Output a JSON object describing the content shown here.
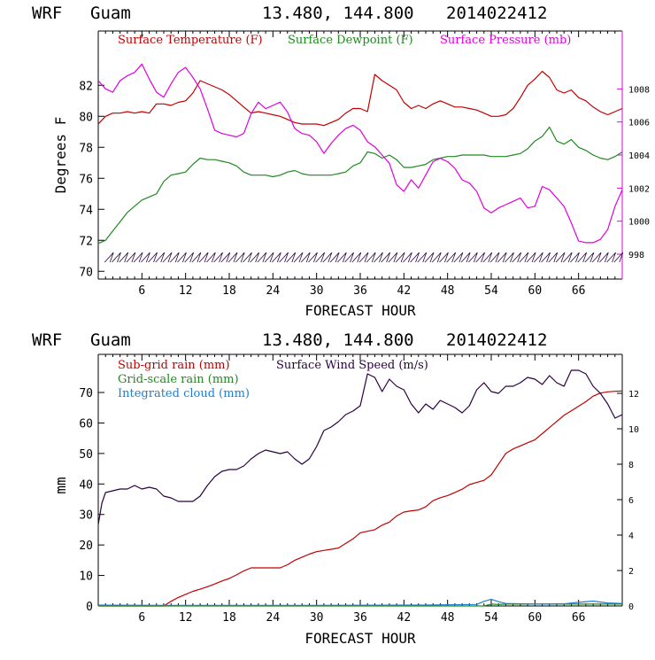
{
  "header": {
    "model": "WRF",
    "location": "Guam",
    "coords": "13.480, 144.800",
    "init_time": "2014022412"
  },
  "colors": {
    "temperature": "#c00000",
    "dewpoint": "#1e8a1e",
    "pressure": "#e000e0",
    "subgrid": "#c00000",
    "gridscale": "#1e8a1e",
    "cloud": "#1e7fd0",
    "wind": "#2a0040",
    "wind_barbs": "#2a0040"
  },
  "chart_data": [
    {
      "type": "line",
      "xlabel": "FORECAST HOUR",
      "ylabel": "Degrees F",
      "xlim": [
        0,
        72
      ],
      "ylim": [
        69.5,
        85.5
      ],
      "y2lim": [
        996.5,
        1011.5
      ],
      "xticks": [
        6,
        12,
        18,
        24,
        30,
        36,
        42,
        48,
        54,
        60,
        66
      ],
      "yticks": [
        70,
        72,
        74,
        76,
        78,
        80,
        82
      ],
      "y2ticks": [
        998,
        1000,
        1002,
        1004,
        1006,
        1008
      ],
      "legend_position": "top",
      "grid": false,
      "wind_barbs_row": "bottom",
      "series": [
        {
          "name": "Surface Temperature (F)",
          "axis": "left",
          "x": [
            0,
            1,
            2,
            3,
            4,
            5,
            6,
            7,
            8,
            9,
            10,
            11,
            12,
            13,
            14,
            15,
            16,
            17,
            18,
            19,
            20,
            21,
            22,
            23,
            24,
            25,
            26,
            27,
            28,
            29,
            30,
            31,
            32,
            33,
            34,
            35,
            36,
            37,
            38,
            39,
            40,
            41,
            42,
            43,
            44,
            45,
            46,
            47,
            48,
            49,
            50,
            51,
            52,
            53,
            54,
            55,
            56,
            57,
            58,
            59,
            60,
            61,
            62,
            63,
            64,
            65,
            66,
            67,
            68,
            69,
            70,
            71,
            72
          ],
          "values": [
            79.5,
            80.0,
            80.2,
            80.2,
            80.3,
            80.2,
            80.3,
            80.2,
            80.8,
            80.8,
            80.7,
            80.9,
            81.0,
            81.5,
            82.3,
            82.1,
            81.9,
            81.7,
            81.4,
            81.0,
            80.6,
            80.2,
            80.3,
            80.2,
            80.1,
            80.0,
            79.8,
            79.6,
            79.5,
            79.5,
            79.5,
            79.4,
            79.6,
            79.8,
            80.2,
            80.5,
            80.5,
            80.3,
            82.7,
            82.3,
            82.0,
            81.7,
            80.9,
            80.5,
            80.7,
            80.5,
            80.8,
            81.0,
            80.8,
            80.6,
            80.6,
            80.5,
            80.4,
            80.2,
            80.0,
            80.0,
            80.1,
            80.5,
            81.2,
            82.0,
            82.4,
            82.9,
            82.5,
            81.7,
            81.5,
            81.7,
            81.2,
            81.0,
            80.6,
            80.3,
            80.1,
            80.3,
            80.5
          ]
        },
        {
          "name": "Surface Dewpoint (F)",
          "axis": "left",
          "x": [
            0,
            1,
            2,
            3,
            4,
            5,
            6,
            7,
            8,
            9,
            10,
            11,
            12,
            13,
            14,
            15,
            16,
            17,
            18,
            19,
            20,
            21,
            22,
            23,
            24,
            25,
            26,
            27,
            28,
            29,
            30,
            31,
            32,
            33,
            34,
            35,
            36,
            37,
            38,
            39,
            40,
            41,
            42,
            43,
            44,
            45,
            46,
            47,
            48,
            49,
            50,
            51,
            52,
            53,
            54,
            55,
            56,
            57,
            58,
            59,
            60,
            61,
            62,
            63,
            64,
            65,
            66,
            67,
            68,
            69,
            70,
            71,
            72
          ],
          "values": [
            71.8,
            72.0,
            72.6,
            73.2,
            73.8,
            74.2,
            74.6,
            74.8,
            75.0,
            75.8,
            76.2,
            76.3,
            76.4,
            76.9,
            77.3,
            77.2,
            77.2,
            77.1,
            77.0,
            76.8,
            76.4,
            76.2,
            76.2,
            76.2,
            76.1,
            76.2,
            76.4,
            76.5,
            76.3,
            76.2,
            76.2,
            76.2,
            76.2,
            76.3,
            76.4,
            76.8,
            77.0,
            77.7,
            77.6,
            77.3,
            77.5,
            77.2,
            76.7,
            76.7,
            76.8,
            76.9,
            77.2,
            77.3,
            77.4,
            77.4,
            77.5,
            77.5,
            77.5,
            77.5,
            77.4,
            77.4,
            77.4,
            77.5,
            77.6,
            77.9,
            78.4,
            78.7,
            79.3,
            78.4,
            78.2,
            78.5,
            78.0,
            77.8,
            77.5,
            77.3,
            77.2,
            77.4,
            77.7
          ]
        },
        {
          "name": "Surface Pressure (mb)",
          "axis": "right",
          "x": [
            0,
            1,
            2,
            3,
            4,
            5,
            6,
            7,
            8,
            9,
            10,
            11,
            12,
            13,
            14,
            15,
            16,
            17,
            18,
            19,
            20,
            21,
            22,
            23,
            24,
            25,
            26,
            27,
            28,
            29,
            30,
            31,
            32,
            33,
            34,
            35,
            36,
            37,
            38,
            39,
            40,
            41,
            42,
            43,
            44,
            45,
            46,
            47,
            48,
            49,
            50,
            51,
            52,
            53,
            54,
            55,
            56,
            57,
            58,
            59,
            60,
            61,
            62,
            63,
            64,
            65,
            66,
            67,
            68,
            69,
            70,
            71,
            72
          ],
          "values": [
            1008.5,
            1008.0,
            1007.8,
            1008.5,
            1008.8,
            1009.0,
            1009.5,
            1008.6,
            1007.8,
            1007.5,
            1008.3,
            1009.0,
            1009.3,
            1008.7,
            1008.0,
            1006.8,
            1005.5,
            1005.3,
            1005.2,
            1005.1,
            1005.3,
            1006.5,
            1007.2,
            1006.8,
            1007.0,
            1007.2,
            1006.6,
            1005.6,
            1005.3,
            1005.2,
            1004.8,
            1004.1,
            1004.7,
            1005.2,
            1005.6,
            1005.8,
            1005.5,
            1004.8,
            1004.5,
            1004.0,
            1003.5,
            1002.2,
            1001.8,
            1002.5,
            1002.0,
            1002.8,
            1003.6,
            1003.8,
            1003.6,
            1003.2,
            1002.5,
            1002.3,
            1001.8,
            1000.8,
            1000.5,
            1000.8,
            1001.0,
            1001.2,
            1001.4,
            1000.8,
            1000.9,
            1002.1,
            1001.9,
            1001.4,
            1000.9,
            999.9,
            998.8,
            998.7,
            998.7,
            998.9,
            999.5,
            1000.9,
            1001.9
          ]
        }
      ]
    },
    {
      "type": "line",
      "xlabel": "FORECAST HOUR",
      "ylabel": "mm",
      "xlim": [
        0,
        72
      ],
      "ylim": [
        0,
        82.5
      ],
      "y2lim": [
        0,
        14.2
      ],
      "xticks": [
        6,
        12,
        18,
        24,
        30,
        36,
        42,
        48,
        54,
        60,
        66
      ],
      "yticks": [
        0,
        10,
        20,
        30,
        40,
        50,
        60,
        70
      ],
      "y2ticks": [
        0,
        2,
        4,
        6,
        8,
        10,
        12
      ],
      "legend_position": "top",
      "grid": false,
      "series": [
        {
          "name": "Sub-grid rain (mm)",
          "axis": "left",
          "x": [
            0,
            9,
            10,
            11,
            12,
            13,
            14,
            15,
            16,
            17,
            18,
            19,
            20,
            21,
            22,
            23,
            24,
            25,
            26,
            27,
            28,
            29,
            30,
            31,
            32,
            33,
            34,
            35,
            36,
            37,
            38,
            39,
            40,
            41,
            42,
            43,
            44,
            45,
            46,
            47,
            48,
            49,
            50,
            51,
            52,
            53,
            54,
            55,
            56,
            57,
            58,
            59,
            60,
            61,
            62,
            63,
            64,
            65,
            66,
            67,
            68,
            69,
            70,
            71,
            72
          ],
          "values": [
            0,
            0,
            1.5,
            2.8,
            3.8,
            4.8,
            5.5,
            6.3,
            7.2,
            8.2,
            9.0,
            10.2,
            11.5,
            12.5,
            12.5,
            12.5,
            12.5,
            12.5,
            13.5,
            15.0,
            16.0,
            17.0,
            17.8,
            18.2,
            18.6,
            19.0,
            20.5,
            22.0,
            24.0,
            24.5,
            25.0,
            26.5,
            27.5,
            29.5,
            30.8,
            31.2,
            31.5,
            32.5,
            34.5,
            35.5,
            36.2,
            37.2,
            38.3,
            39.8,
            40.5,
            41.2,
            43.0,
            46.5,
            50.0,
            51.5,
            52.5,
            53.5,
            54.5,
            56.5,
            58.5,
            60.5,
            62.5,
            64.0,
            65.5,
            67.0,
            68.8,
            69.8,
            70.2,
            70.4,
            70.5
          ]
        },
        {
          "name": "Grid-scale rain (mm)",
          "axis": "left",
          "x": [
            0,
            53,
            54,
            55,
            56,
            72
          ],
          "values": [
            0,
            0,
            0.6,
            0.5,
            0.6,
            0.6
          ]
        },
        {
          "name": "Integrated cloud (mm)",
          "axis": "left",
          "x": [
            0,
            10,
            30,
            45,
            52,
            53,
            54,
            55,
            56,
            60,
            64,
            66,
            68,
            70,
            72
          ],
          "values": [
            0.3,
            0.2,
            0.2,
            0.3,
            0.5,
            1.5,
            2.2,
            1.4,
            0.8,
            0.6,
            0.7,
            1.2,
            1.6,
            1.0,
            0.8
          ]
        },
        {
          "name": "Surface Wind Speed (m/s)",
          "axis": "right",
          "x": [
            0,
            0.5,
            1,
            2,
            3,
            4,
            5,
            6,
            7,
            8,
            9,
            10,
            11,
            12,
            13,
            14,
            15,
            16,
            17,
            18,
            19,
            20,
            21,
            22,
            23,
            24,
            25,
            26,
            27,
            28,
            29,
            30,
            31,
            32,
            33,
            34,
            35,
            36,
            37,
            38,
            39,
            40,
            41,
            42,
            43,
            44,
            45,
            46,
            47,
            48,
            49,
            50,
            51,
            52,
            53,
            54,
            55,
            56,
            57,
            58,
            59,
            60,
            61,
            62,
            63,
            64,
            65,
            66,
            67,
            68,
            69,
            70,
            71,
            72
          ],
          "values": [
            4.6,
            5.8,
            6.4,
            6.5,
            6.6,
            6.6,
            6.8,
            6.6,
            6.7,
            6.6,
            6.2,
            6.1,
            5.9,
            5.9,
            5.9,
            6.2,
            6.8,
            7.3,
            7.6,
            7.7,
            7.7,
            7.9,
            8.3,
            8.6,
            8.8,
            8.7,
            8.6,
            8.7,
            8.3,
            8.0,
            8.3,
            9.0,
            9.9,
            10.1,
            10.4,
            10.8,
            11.0,
            11.3,
            13.1,
            12.9,
            12.1,
            12.8,
            12.4,
            12.2,
            11.4,
            10.9,
            11.4,
            11.1,
            11.6,
            11.4,
            11.2,
            10.9,
            11.3,
            12.2,
            12.6,
            12.1,
            12.0,
            12.4,
            12.4,
            12.6,
            12.9,
            12.8,
            12.5,
            13.0,
            12.6,
            12.4,
            13.3,
            13.3,
            13.1,
            12.4,
            12.0,
            11.4,
            10.6,
            10.8
          ]
        }
      ]
    }
  ]
}
